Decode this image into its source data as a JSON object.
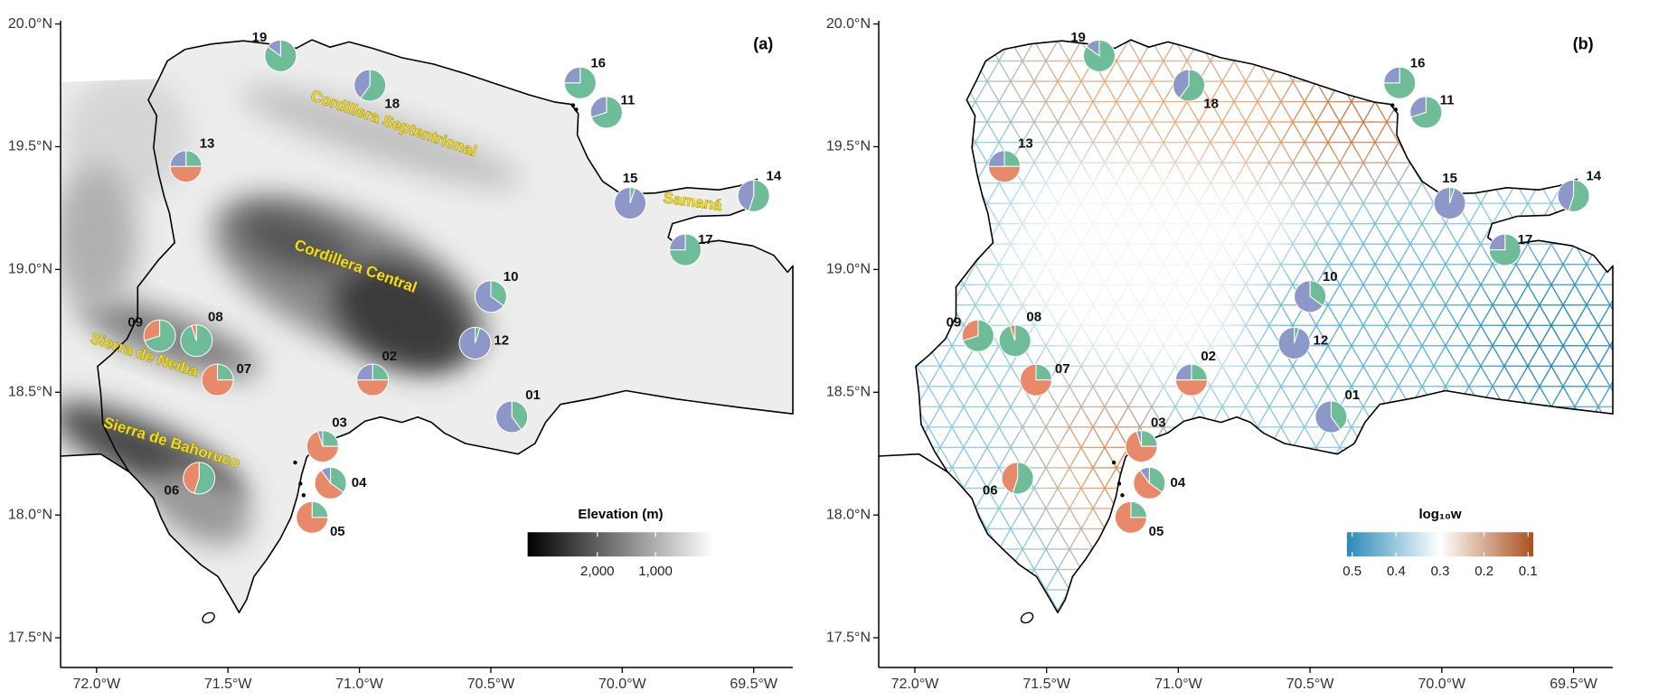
{
  "panels": [
    {
      "label": "(a)",
      "legend": {
        "title": "Elevation (m)",
        "lim": [
          3200,
          0
        ],
        "colors": [
          "#000000",
          "#ffffff"
        ],
        "ticks": [
          {
            "value": 2000,
            "label": "2,000"
          },
          {
            "value": 1000,
            "label": "1,000"
          }
        ]
      },
      "map_labels": [
        "Cordillera Septentrional",
        "Samaná",
        "Cordillera Central",
        "Sierra de Neiba",
        "Sierra de Bahoruco"
      ]
    },
    {
      "label": "(b)",
      "legend": {
        "title": "log₁₀w",
        "lim": [
          0.512,
          0.088
        ],
        "colors": [
          "#2a8ab8",
          "#ffffff",
          "#a9501f"
        ],
        "ticks": [
          0.5,
          0.4,
          0.3,
          0.2,
          0.1
        ]
      }
    }
  ],
  "axes": {
    "xlim": [
      -72.137,
      -69.351
    ],
    "ylim": [
      17.379,
      20.013
    ],
    "xticks": [
      {
        "value": -72,
        "label": "72.0°W"
      },
      {
        "value": -71.5,
        "label": "71.5°W"
      },
      {
        "value": -71,
        "label": "71.0°W"
      },
      {
        "value": -70.5,
        "label": "70.5°W"
      },
      {
        "value": -70,
        "label": "70.0°W"
      },
      {
        "value": -69.5,
        "label": "69.5°W"
      }
    ],
    "yticks": [
      {
        "value": 17.5,
        "label": "17.5°N"
      },
      {
        "value": 18,
        "label": "18.0°N"
      },
      {
        "value": 18.5,
        "label": "18.5°N"
      },
      {
        "value": 19,
        "label": "19.0°N"
      },
      {
        "value": 19.5,
        "label": "19.5°N"
      },
      {
        "value": 20,
        "label": "20.0°N"
      }
    ]
  },
  "cluster_colors": [
    "#e8896a",
    "#6fbc98",
    "#8e98c8"
  ],
  "sites": [
    {
      "id": "01",
      "lon": -70.42,
      "lat": 18.4,
      "values": [
        0,
        40,
        60
      ]
    },
    {
      "id": "02",
      "lon": -70.95,
      "lat": 18.55,
      "values": [
        50,
        25,
        25
      ]
    },
    {
      "id": "03",
      "lon": -71.14,
      "lat": 18.28,
      "values": [
        70,
        25,
        5
      ]
    },
    {
      "id": "04",
      "lon": -71.11,
      "lat": 18.13,
      "values": [
        55,
        35,
        10
      ]
    },
    {
      "id": "05",
      "lon": -71.18,
      "lat": 17.99,
      "values": [
        75,
        25,
        0
      ]
    },
    {
      "id": "06",
      "lon": -71.61,
      "lat": 18.15,
      "values": [
        45,
        55,
        0
      ]
    },
    {
      "id": "07",
      "lon": -71.54,
      "lat": 18.55,
      "values": [
        75,
        25,
        0
      ]
    },
    {
      "id": "08",
      "lon": -71.62,
      "lat": 18.71,
      "values": [
        5,
        95,
        0
      ]
    },
    {
      "id": "09",
      "lon": -71.76,
      "lat": 18.73,
      "values": [
        30,
        70,
        0
      ]
    },
    {
      "id": "10",
      "lon": -70.5,
      "lat": 18.89,
      "values": [
        0,
        35,
        65
      ]
    },
    {
      "id": "11",
      "lon": -70.06,
      "lat": 19.64,
      "values": [
        0,
        70,
        30
      ]
    },
    {
      "id": "12",
      "lon": -70.56,
      "lat": 18.7,
      "values": [
        0,
        5,
        95
      ]
    },
    {
      "id": "13",
      "lon": -71.66,
      "lat": 19.42,
      "values": [
        50,
        25,
        25
      ]
    },
    {
      "id": "14",
      "lon": -69.5,
      "lat": 19.3,
      "values": [
        0,
        55,
        45
      ]
    },
    {
      "id": "15",
      "lon": -69.97,
      "lat": 19.27,
      "values": [
        0,
        5,
        95
      ]
    },
    {
      "id": "16",
      "lon": -70.16,
      "lat": 19.76,
      "values": [
        0,
        75,
        25
      ]
    },
    {
      "id": "17",
      "lon": -69.76,
      "lat": 19.08,
      "values": [
        0,
        75,
        25
      ]
    },
    {
      "id": "18",
      "lon": -70.96,
      "lat": 19.75,
      "values": [
        0,
        60,
        40
      ]
    },
    {
      "id": "19",
      "lon": -71.3,
      "lat": 19.87,
      "values": [
        0,
        85,
        15
      ]
    }
  ]
}
